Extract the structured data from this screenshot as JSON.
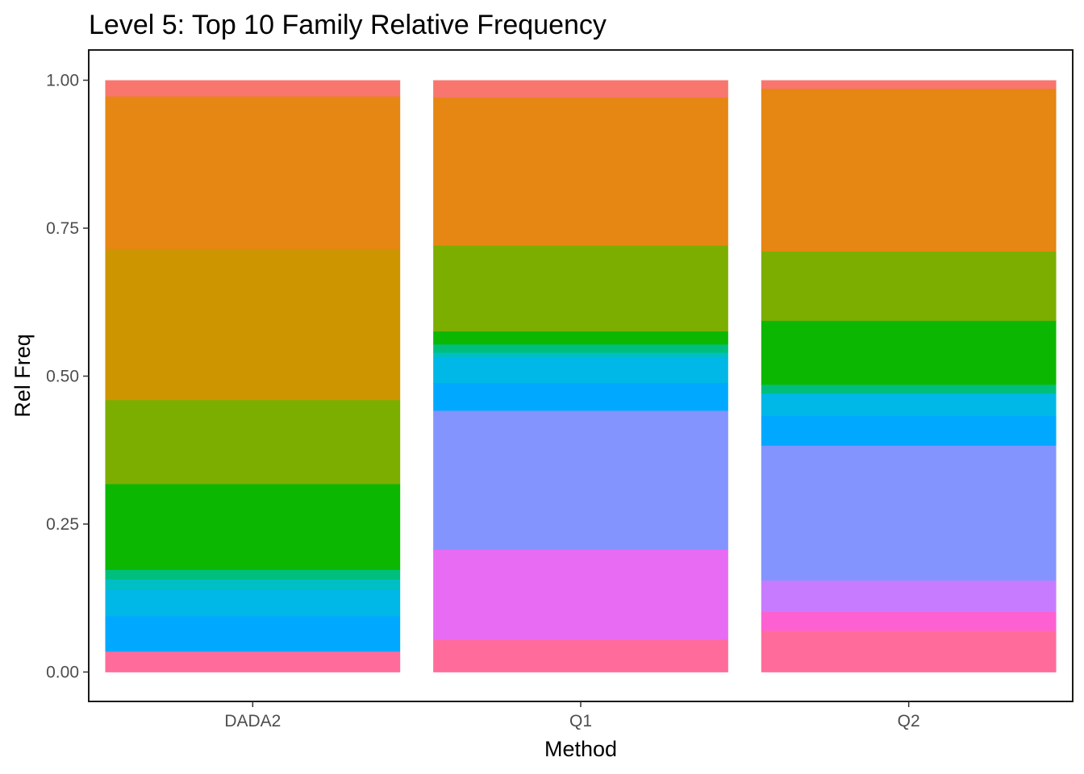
{
  "chart_data": {
    "type": "bar",
    "stacked": true,
    "title": "Level 5: Top 10 Family Relative Frequency",
    "xlabel": "Method",
    "ylabel": "Rel Freq",
    "categories": [
      "DADA2",
      "Q1",
      "Q2"
    ],
    "ylim": [
      0,
      1
    ],
    "yticks": [
      "0.00",
      "0.25",
      "0.50",
      "0.75",
      "1.00"
    ],
    "ytick_values": [
      0,
      0.25,
      0.5,
      0.75,
      1.0
    ],
    "grid": false,
    "legend": "none",
    "series": [
      {
        "color": "#FF6C9C",
        "values": [
          0.035,
          0.055,
          0.07
        ]
      },
      {
        "color": "#FD61D1",
        "values": [
          0,
          0,
          0.032
        ]
      },
      {
        "color": "#E76BF3",
        "values": [
          0,
          0.152,
          0
        ]
      },
      {
        "color": "#C77CFF",
        "values": [
          0,
          0,
          0.053
        ]
      },
      {
        "color": "#8494FF",
        "values": [
          0,
          0.235,
          0.228
        ]
      },
      {
        "color": "#00A9FF",
        "values": [
          0.06,
          0.047,
          0.05
        ]
      },
      {
        "color": "#00B8E7",
        "values": [
          0.045,
          0.043,
          0.038
        ]
      },
      {
        "color": "#00BFC4",
        "values": [
          0.017,
          0.008,
          0
        ]
      },
      {
        "color": "#00BF7D",
        "values": [
          0.016,
          0.014,
          0.015
        ]
      },
      {
        "color": "#0CB702",
        "values": [
          0.145,
          0.022,
          0.108
        ]
      },
      {
        "color": "#7CAE00",
        "values": [
          0.142,
          0.145,
          0.117
        ]
      },
      {
        "color": "#CD9600",
        "values": [
          0.255,
          0,
          0
        ]
      },
      {
        "color": "#E68613",
        "values": [
          0.258,
          0.25,
          0.275
        ]
      },
      {
        "color": "#F8766D",
        "values": [
          0.027,
          0.029,
          0.014
        ]
      }
    ]
  }
}
